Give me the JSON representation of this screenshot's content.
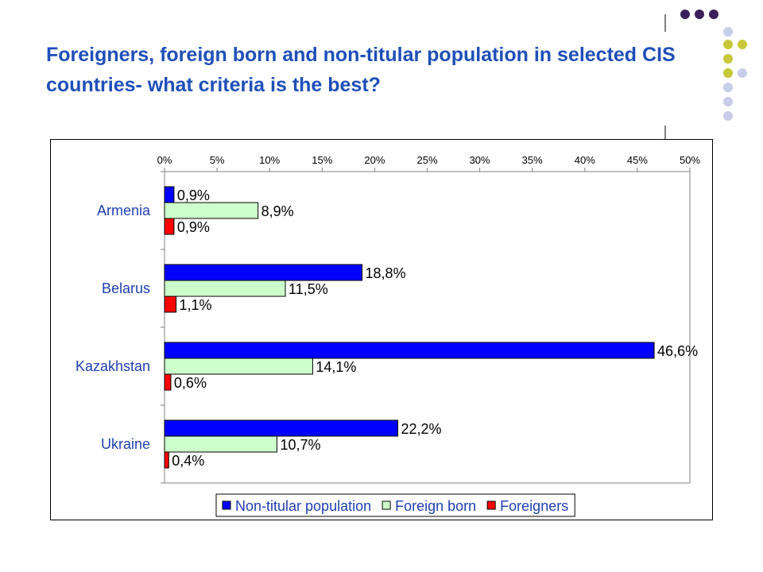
{
  "slide": {
    "title": "Foreigners, foreign born and non-titular population in selected CIS countries- what criteria is the best?"
  },
  "colors": {
    "title": "#1f4fb8",
    "decoration_olive": "#c8c83a",
    "decoration_lavender": "#c8cce8",
    "decoration_dark": "#3a1f5a"
  },
  "chart_data": {
    "type": "bar",
    "orientation": "horizontal",
    "title": "",
    "xlabel": "",
    "ylabel": "",
    "xlim": [
      0,
      50
    ],
    "x_ticks": [
      "0%",
      "5%",
      "10%",
      "15%",
      "20%",
      "25%",
      "30%",
      "35%",
      "40%",
      "45%",
      "50%"
    ],
    "x_axis_position": "top",
    "grid": false,
    "categories": [
      "Armenia",
      "Belarus",
      "Kazakhstan",
      "Ukraine"
    ],
    "series": [
      {
        "name": "Non-titular population",
        "color": "#0000ff",
        "values": [
          0.9,
          18.8,
          46.6,
          22.2
        ],
        "labels": [
          "0,9%",
          "18,8%",
          "46,6%",
          "22,2%"
        ]
      },
      {
        "name": "Foreign born",
        "color": "#ccffcc",
        "values": [
          8.9,
          11.5,
          14.1,
          10.7
        ],
        "labels": [
          "8,9%",
          "11,5%",
          "14,1%",
          "10,7%"
        ]
      },
      {
        "name": "Foreigners",
        "color": "#ff0000",
        "values": [
          0.9,
          1.1,
          0.6,
          0.4
        ],
        "labels": [
          "0,9%",
          "1,1%",
          "0,6%",
          "0,4%"
        ]
      }
    ],
    "legend_position": "bottom"
  }
}
